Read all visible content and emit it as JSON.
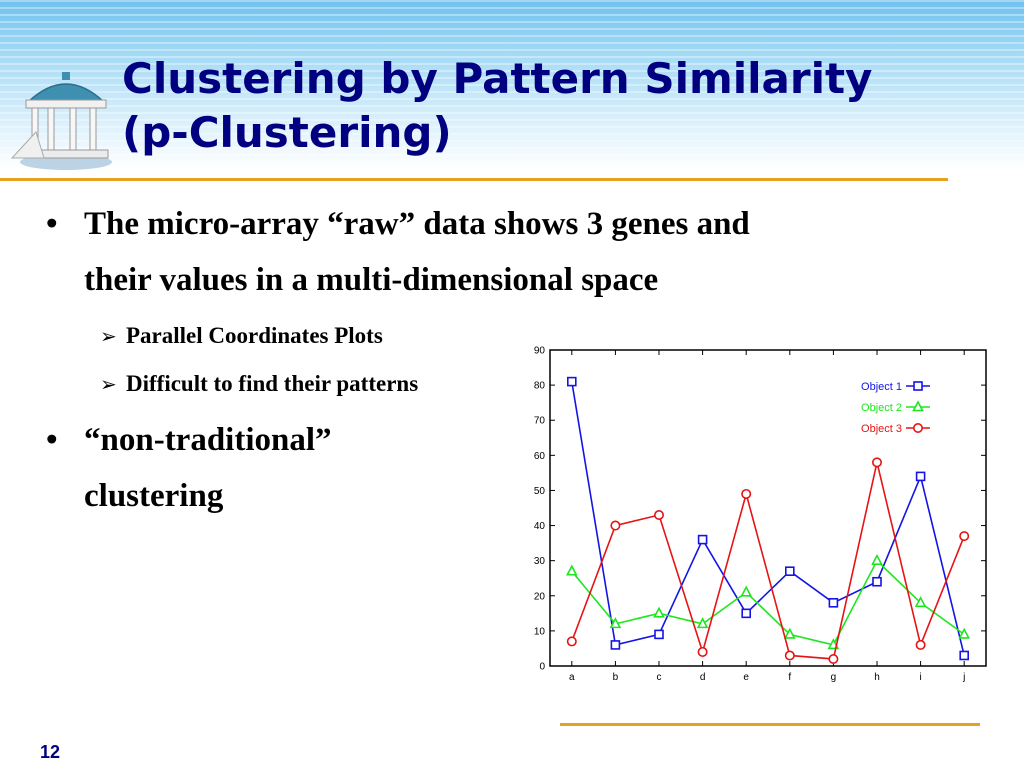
{
  "slide": {
    "title_line1": "Clustering by Pattern Similarity",
    "title_line2": "(p-Clustering)",
    "page_number": "12"
  },
  "bullets": [
    {
      "line1": "The micro-array “raw” data shows 3 genes and",
      "line2": "their values in a multi-dimensional space",
      "subs": [
        "Parallel Coordinates Plots",
        "Difficult to find their patterns"
      ]
    },
    {
      "line1": "“non-traditional”",
      "line2": "clustering",
      "subs": []
    }
  ],
  "colors": {
    "title": "#000080",
    "rule": "#e6a21e",
    "object1": "#1414e6",
    "object2": "#1ee61e",
    "object3": "#e61414"
  },
  "chart_data": {
    "type": "line",
    "categories": [
      "a",
      "b",
      "c",
      "d",
      "e",
      "f",
      "g",
      "h",
      "i",
      "j"
    ],
    "ylim": [
      0,
      90
    ],
    "yticks": [
      0,
      10,
      20,
      30,
      40,
      50,
      60,
      70,
      80,
      90
    ],
    "grid": false,
    "legend_position": "top-right",
    "series": [
      {
        "name": "Object 1",
        "marker": "square",
        "color": "#1414e6",
        "values": [
          81,
          6,
          9,
          36,
          15,
          27,
          18,
          24,
          54,
          3
        ]
      },
      {
        "name": "Object 2",
        "marker": "triangle",
        "color": "#1ee61e",
        "values": [
          27,
          12,
          15,
          12,
          21,
          9,
          6,
          30,
          18,
          9
        ]
      },
      {
        "name": "Object 3",
        "marker": "circle",
        "color": "#e61414",
        "values": [
          7,
          40,
          43,
          4,
          49,
          3,
          2,
          58,
          6,
          37
        ]
      }
    ]
  }
}
